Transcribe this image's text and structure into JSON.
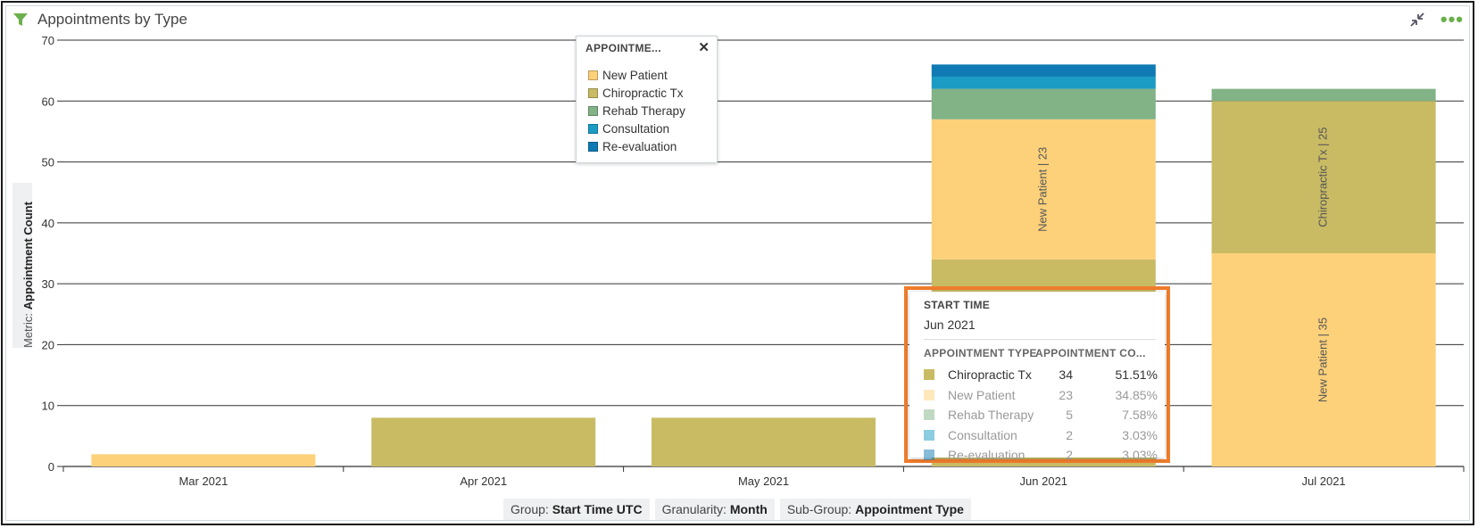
{
  "window": {
    "title": "Appointments by Type"
  },
  "icons": {
    "filter": "filter-icon",
    "collapse": "collapse-icon",
    "more": "more-options-icon",
    "close": "close-icon"
  },
  "metric": {
    "prefix": "Metric:",
    "value": "Appointment Count"
  },
  "footer": {
    "group_label": "Group:",
    "group_value": "Start Time UTC",
    "granularity_label": "Granularity:",
    "granularity_value": "Month",
    "subgroup_label": "Sub-Group:",
    "subgroup_value": "Appointment Type"
  },
  "legend": {
    "title": "APPOINTME...",
    "close": "✕",
    "items": [
      {
        "label": "New Patient",
        "color": "#fdd17a"
      },
      {
        "label": "Chiropractic Tx",
        "color": "#c9bb64"
      },
      {
        "label": "Rehab Therapy",
        "color": "#82b386"
      },
      {
        "label": "Consultation",
        "color": "#1a9cc4"
      },
      {
        "label": "Re-evaluation",
        "color": "#0f7ab4"
      }
    ]
  },
  "tooltip": {
    "start_label": "START TIME",
    "start_value": "Jun 2021",
    "col_type": "APPOINTMENT TYPE",
    "col_count": "APPOINTMENT CO...",
    "rows": [
      {
        "name": "Chiropractic Tx",
        "count": "34",
        "pct": "51.51%",
        "color": "#c9bb64",
        "highlight": true
      },
      {
        "name": "New Patient",
        "count": "23",
        "pct": "34.85%",
        "color": "#fdd17a",
        "highlight": false
      },
      {
        "name": "Rehab Therapy",
        "count": "5",
        "pct": "7.58%",
        "color": "#82b386",
        "highlight": false
      },
      {
        "name": "Consultation",
        "count": "2",
        "pct": "3.03%",
        "color": "#1a9cc4",
        "highlight": false
      },
      {
        "name": "Re-evaluation",
        "count": "2",
        "pct": "3.03%",
        "color": "#0f7ab4",
        "highlight": false
      }
    ]
  },
  "chart_data": {
    "type": "bar",
    "stacked": true,
    "title": "Appointments by Type",
    "ylabel": "Appointment Count",
    "ylim": [
      0,
      70
    ],
    "yticks": [
      0,
      10,
      20,
      30,
      40,
      50,
      60,
      70
    ],
    "categories": [
      "Mar 2021",
      "Apr 2021",
      "May 2021",
      "Jun 2021",
      "Jul 2021"
    ],
    "series": [
      {
        "name": "Chiropractic Tx",
        "color": "#c9bb64",
        "values": [
          0,
          8,
          8,
          34,
          25
        ]
      },
      {
        "name": "New Patient",
        "color": "#fdd17a",
        "values": [
          2,
          0,
          0,
          23,
          35
        ]
      },
      {
        "name": "Rehab Therapy",
        "color": "#82b386",
        "values": [
          0,
          0,
          0,
          5,
          2
        ]
      },
      {
        "name": "Consultation",
        "color": "#1a9cc4",
        "values": [
          0,
          0,
          0,
          2,
          0
        ]
      },
      {
        "name": "Re-evaluation",
        "color": "#0f7ab4",
        "values": [
          0,
          0,
          0,
          2,
          0
        ]
      }
    ],
    "stack_order": [
      [
        "New Patient"
      ],
      [
        "Chiropractic Tx"
      ],
      [
        "Chiropractic Tx"
      ],
      [
        "Chiropractic Tx",
        "New Patient",
        "Rehab Therapy",
        "Consultation",
        "Re-evaluation"
      ],
      [
        "New Patient",
        "Chiropractic Tx",
        "Rehab Therapy"
      ]
    ],
    "data_labels": [
      {
        "category": "Jun 2021",
        "series": "New Patient",
        "text": "New Patient | 23"
      },
      {
        "category": "Jul 2021",
        "series": "Chiropractic Tx",
        "text": "Chiropractic Tx | 25"
      },
      {
        "category": "Jul 2021",
        "series": "New Patient",
        "text": "New Patient | 35"
      }
    ],
    "grid": true,
    "legend_position": "top-center"
  }
}
